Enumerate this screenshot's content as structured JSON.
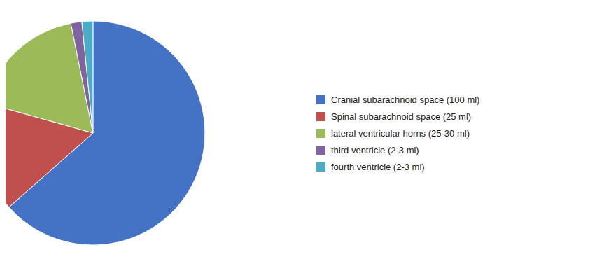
{
  "chart_data": {
    "type": "pie",
    "categories": [
      "Cranial subarachnoid space (100 ml)",
      "Spinal subarachnoid space (25 ml)",
      "lateral ventricular horns (25-30 ml)",
      "third ventricle (2-3 ml)",
      "fourth ventricle (2-3 ml)"
    ],
    "values": [
      100,
      25,
      27.5,
      2.5,
      2.5
    ],
    "colors": [
      "#4472C4",
      "#C0504D",
      "#9BBB59",
      "#8064A2",
      "#4BACC6"
    ],
    "legend": "right"
  }
}
